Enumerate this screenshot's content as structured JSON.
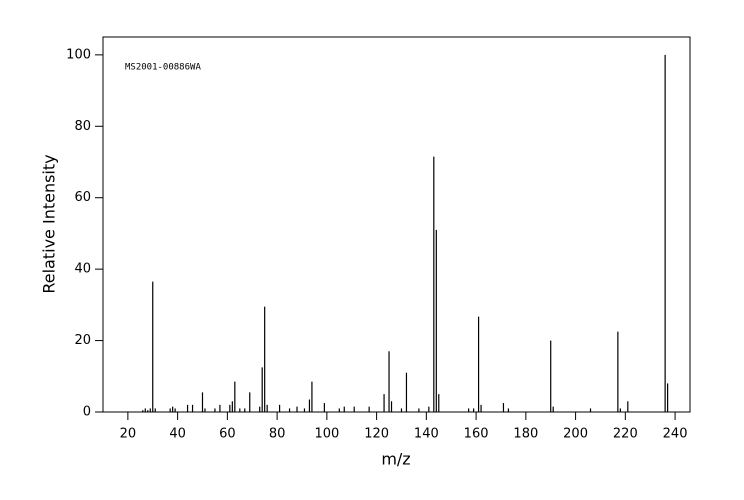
{
  "chart_data": {
    "type": "bar",
    "annotation": "MS2001-00886WA",
    "x_label": "m/z",
    "y_label": "Relative Intensity",
    "x": [
      26,
      27,
      28,
      29,
      30,
      31,
      37,
      38,
      39,
      44,
      46,
      50,
      51,
      55,
      57,
      61,
      62,
      63,
      65,
      67,
      69,
      73,
      74,
      75,
      76,
      81,
      85,
      88,
      91,
      93,
      94,
      99,
      105,
      107,
      111,
      117,
      123,
      125,
      126,
      130,
      132,
      137,
      141,
      143,
      144,
      145,
      157,
      159,
      161,
      162,
      171,
      173,
      190,
      191,
      206,
      217,
      218,
      221,
      236,
      237
    ],
    "values": [
      0.5,
      1,
      0.5,
      1,
      36.5,
      1,
      1,
      1.5,
      1,
      2,
      2,
      5.5,
      1,
      1,
      2,
      2,
      3,
      8.5,
      1,
      1,
      5.5,
      1.5,
      12.5,
      29.5,
      2,
      2,
      1,
      1.5,
      1,
      3.5,
      8.5,
      2.5,
      1,
      1.5,
      1.5,
      1.5,
      5,
      17,
      3,
      1,
      11,
      1,
      1.5,
      71.5,
      51,
      5,
      1,
      1,
      26.7,
      2,
      2.5,
      1,
      20,
      1.5,
      1,
      22.5,
      1,
      3,
      100,
      8
    ],
    "color": "#000000",
    "xlim": [
      10,
      246
    ],
    "ylim": [
      0,
      105
    ],
    "xticks": [
      20,
      40,
      60,
      80,
      100,
      120,
      140,
      160,
      180,
      200,
      220,
      240
    ],
    "yticks": [
      0,
      20,
      40,
      60,
      80,
      100
    ]
  }
}
